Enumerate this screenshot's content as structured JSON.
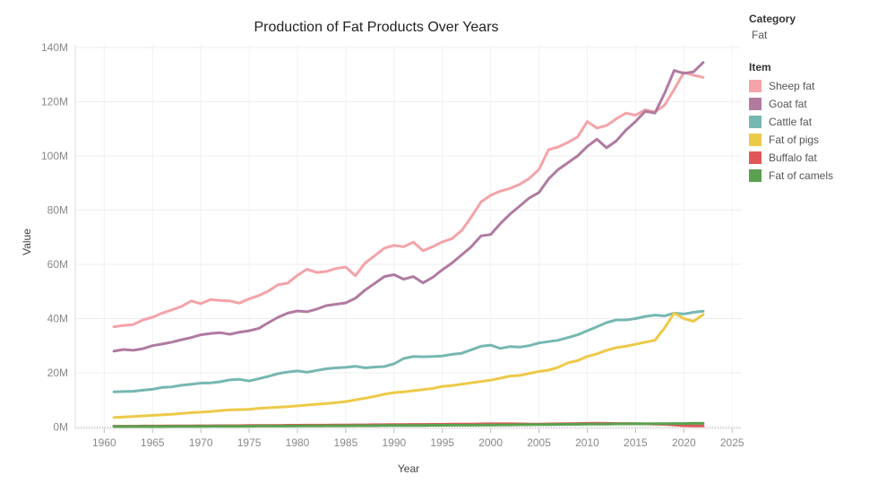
{
  "chart_data": {
    "type": "line",
    "title": "Production of Fat Products Over Years",
    "xlabel": "Year",
    "ylabel": "Value",
    "xlim": [
      1957,
      2026
    ],
    "ylim": [
      -500000,
      141000000
    ],
    "x_ticks": [
      1960,
      1965,
      1970,
      1975,
      1980,
      1985,
      1990,
      1995,
      2000,
      2005,
      2010,
      2015,
      2020,
      2025
    ],
    "y_ticks": [
      0,
      20000000,
      40000000,
      60000000,
      80000000,
      100000000,
      120000000,
      140000000
    ],
    "y_tick_labels": [
      "0M",
      "20M",
      "40M",
      "60M",
      "80M",
      "100M",
      "120M",
      "140M"
    ],
    "grid": true,
    "legend_position": "right",
    "legend": {
      "category_title": "Category",
      "category_value": "Fat",
      "item_title": "Item"
    },
    "x": [
      1961,
      1962,
      1963,
      1964,
      1965,
      1966,
      1967,
      1968,
      1969,
      1970,
      1971,
      1972,
      1973,
      1974,
      1975,
      1976,
      1977,
      1978,
      1979,
      1980,
      1981,
      1982,
      1983,
      1984,
      1985,
      1986,
      1987,
      1988,
      1989,
      1990,
      1991,
      1992,
      1993,
      1994,
      1995,
      1996,
      1997,
      1998,
      1999,
      2000,
      2001,
      2002,
      2003,
      2004,
      2005,
      2006,
      2007,
      2008,
      2009,
      2010,
      2011,
      2012,
      2013,
      2014,
      2015,
      2016,
      2017,
      2018,
      2019,
      2020,
      2021,
      2022
    ],
    "series": [
      {
        "name": "Sheep fat",
        "color": "#f4a3a8",
        "values": [
          37.0,
          37.5,
          37.8,
          39.5,
          40.5,
          42.0,
          43.2,
          44.5,
          46.5,
          45.5,
          47.0,
          46.7,
          46.5,
          45.7,
          47.3,
          48.5,
          50.2,
          52.5,
          53.1,
          56.0,
          58.2,
          57.0,
          57.4,
          58.5,
          59.0,
          55.8,
          60.5,
          63.2,
          66.0,
          67.0,
          66.5,
          68.2,
          65.0,
          66.5,
          68.3,
          69.5,
          72.5,
          77.5,
          83.0,
          85.5,
          87.0,
          88.0,
          89.5,
          91.7,
          95.0,
          102.3,
          103.3,
          105.0,
          107.0,
          112.7,
          110.3,
          111.2,
          113.7,
          115.8,
          115.0,
          117.0,
          116.2,
          118.7,
          124.5,
          130.8,
          129.8,
          129.0
        ]
      },
      {
        "name": "Goat fat",
        "color": "#b07aa1",
        "values": [
          28.0,
          28.6,
          28.3,
          28.9,
          30.0,
          30.6,
          31.3,
          32.2,
          33.0,
          34.0,
          34.5,
          34.8,
          34.2,
          35.0,
          35.5,
          36.4,
          38.5,
          40.5,
          42.0,
          42.8,
          42.5,
          43.5,
          44.8,
          45.3,
          45.8,
          47.5,
          50.5,
          53.0,
          55.5,
          56.2,
          54.5,
          55.5,
          53.2,
          55.2,
          58.0,
          60.5,
          63.5,
          66.5,
          70.5,
          71.0,
          75.0,
          78.5,
          81.5,
          84.5,
          86.5,
          91.5,
          95.0,
          97.5,
          100.0,
          103.5,
          106.2,
          103.0,
          105.5,
          109.5,
          112.7,
          116.5,
          115.8,
          123.0,
          131.5,
          130.5,
          131.0,
          134.5
        ]
      },
      {
        "name": "Cattle fat",
        "color": "#76b7b2",
        "values": [
          13.0,
          13.1,
          13.2,
          13.6,
          13.9,
          14.6,
          14.8,
          15.4,
          15.8,
          16.2,
          16.3,
          16.7,
          17.4,
          17.6,
          17.0,
          17.8,
          18.7,
          19.7,
          20.3,
          20.7,
          20.2,
          20.9,
          21.5,
          21.8,
          22.0,
          22.4,
          21.8,
          22.1,
          22.3,
          23.3,
          25.3,
          26.0,
          25.9,
          26.0,
          26.2,
          26.8,
          27.2,
          28.5,
          29.8,
          30.2,
          29.0,
          29.7,
          29.5,
          30.0,
          31.0,
          31.5,
          32.0,
          33.0,
          34.0,
          35.5,
          37.0,
          38.5,
          39.5,
          39.5,
          40.0,
          40.8,
          41.3,
          41.0,
          42.0,
          41.7,
          42.3,
          42.7
        ]
      },
      {
        "name": "Fat of pigs",
        "color": "#edc948",
        "values": [
          3.5,
          3.7,
          3.9,
          4.1,
          4.3,
          4.5,
          4.7,
          5.0,
          5.3,
          5.5,
          5.7,
          6.0,
          6.3,
          6.4,
          6.5,
          6.9,
          7.1,
          7.3,
          7.5,
          7.8,
          8.1,
          8.4,
          8.7,
          9.0,
          9.4,
          10.0,
          10.6,
          11.3,
          12.1,
          12.7,
          13.0,
          13.4,
          13.8,
          14.2,
          15.0,
          15.3,
          15.8,
          16.3,
          16.8,
          17.3,
          18.0,
          18.8,
          19.0,
          19.8,
          20.5,
          21.0,
          22.0,
          23.7,
          24.5,
          26.0,
          27.0,
          28.3,
          29.3,
          29.8,
          30.5,
          31.3,
          32.0,
          36.5,
          42.0,
          40.0,
          39.0,
          41.5
        ]
      },
      {
        "name": "Buffalo fat",
        "color": "#e15759",
        "values": [
          0.3,
          0.3,
          0.3,
          0.35,
          0.35,
          0.35,
          0.4,
          0.4,
          0.4,
          0.45,
          0.45,
          0.5,
          0.5,
          0.5,
          0.55,
          0.55,
          0.6,
          0.6,
          0.65,
          0.65,
          0.7,
          0.7,
          0.7,
          0.75,
          0.75,
          0.8,
          0.8,
          0.85,
          0.85,
          0.9,
          0.9,
          0.95,
          0.95,
          1.0,
          1.0,
          1.05,
          1.1,
          1.1,
          1.15,
          1.2,
          1.2,
          1.2,
          1.15,
          1.1,
          1.1,
          1.15,
          1.2,
          1.25,
          1.3,
          1.35,
          1.4,
          1.35,
          1.3,
          1.3,
          1.25,
          1.2,
          1.1,
          1.0,
          0.8,
          0.5,
          0.4,
          0.4
        ]
      },
      {
        "name": "Fat of camels",
        "color": "#59a14f",
        "values": [
          0.2,
          0.2,
          0.2,
          0.2,
          0.2,
          0.2,
          0.25,
          0.25,
          0.25,
          0.25,
          0.3,
          0.3,
          0.3,
          0.3,
          0.3,
          0.35,
          0.35,
          0.35,
          0.35,
          0.4,
          0.4,
          0.4,
          0.45,
          0.45,
          0.45,
          0.5,
          0.5,
          0.5,
          0.55,
          0.55,
          0.6,
          0.6,
          0.6,
          0.65,
          0.65,
          0.7,
          0.7,
          0.7,
          0.75,
          0.75,
          0.8,
          0.8,
          0.85,
          0.85,
          0.9,
          0.9,
          0.95,
          1.0,
          1.0,
          1.05,
          1.1,
          1.1,
          1.15,
          1.15,
          1.2,
          1.2,
          1.25,
          1.25,
          1.3,
          1.3,
          1.35,
          1.35
        ]
      }
    ],
    "value_unit": "millions"
  }
}
